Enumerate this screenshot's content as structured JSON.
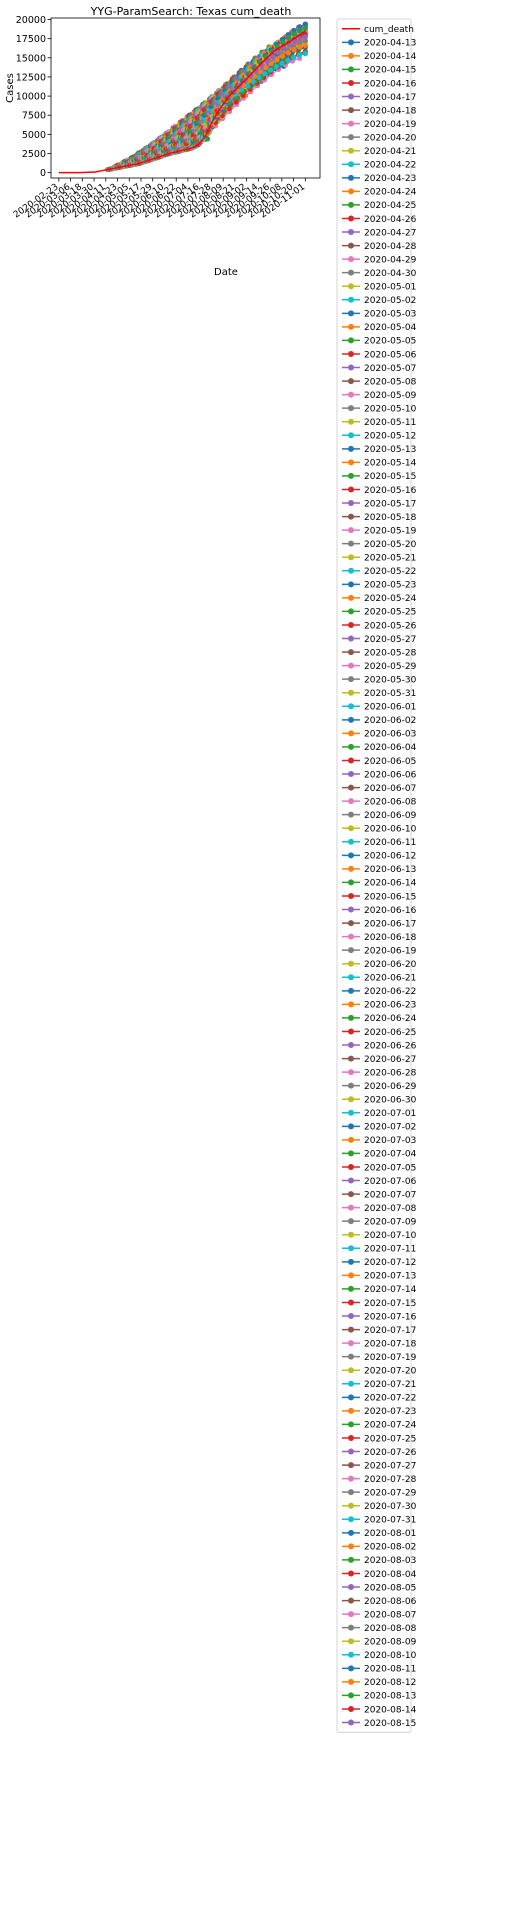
{
  "chart_data": {
    "type": "line",
    "title": "YYG-ParamSearch: Texas cum_death",
    "xlabel": "Date",
    "ylabel": "Cases",
    "ylim": [
      -700,
      20200
    ],
    "yticks": [
      0,
      2500,
      5000,
      7500,
      10000,
      12500,
      15000,
      17500,
      20000
    ],
    "xlim": [
      "2020-02-15",
      "2020-11-16"
    ],
    "xticks": [
      "2020-02-23",
      "2020-03-06",
      "2020-03-18",
      "2020-03-30",
      "2020-04-11",
      "2020-04-23",
      "2020-05-05",
      "2020-05-17",
      "2020-05-29",
      "2020-06-10",
      "2020-06-22",
      "2020-07-04",
      "2020-07-16",
      "2020-07-28",
      "2020-08-09",
      "2020-08-21",
      "2020-09-02",
      "2020-09-14",
      "2020-09-26",
      "2020-10-08",
      "2020-10-20",
      "2020-11-01"
    ],
    "grid": false,
    "legend_position": "outside-right",
    "truth": {
      "name": "cum_death",
      "color": "#ff0000",
      "x": [
        "2020-02-23",
        "2020-03-15",
        "2020-03-31",
        "2020-04-15",
        "2020-05-01",
        "2020-05-15",
        "2020-06-01",
        "2020-06-15",
        "2020-07-01",
        "2020-07-08",
        "2020-07-15",
        "2020-07-22",
        "2020-07-29",
        "2020-08-05",
        "2020-08-15",
        "2020-08-31",
        "2020-09-15",
        "2020-10-01",
        "2020-10-15",
        "2020-11-01"
      ],
      "y": [
        0,
        10,
        80,
        450,
        850,
        1200,
        1900,
        2500,
        3000,
        3200,
        3700,
        4800,
        6700,
        8200,
        10000,
        12000,
        14000,
        16000,
        17000,
        18500
      ]
    },
    "forecast_window_days": 100,
    "forecast_target_day": "2020-11-01",
    "color_cycle": [
      "#1f77b4",
      "#ff7f0e",
      "#2ca02c",
      "#d62728",
      "#9467bd",
      "#8c564b",
      "#e377c2",
      "#7f7f7f",
      "#bcbd22",
      "#17becf"
    ],
    "series": [
      {
        "name": "2020-04-13"
      },
      {
        "name": "2020-04-14"
      },
      {
        "name": "2020-04-15"
      },
      {
        "name": "2020-04-16"
      },
      {
        "name": "2020-04-17"
      },
      {
        "name": "2020-04-18"
      },
      {
        "name": "2020-04-19"
      },
      {
        "name": "2020-04-20"
      },
      {
        "name": "2020-04-21"
      },
      {
        "name": "2020-04-22"
      },
      {
        "name": "2020-04-23"
      },
      {
        "name": "2020-04-24"
      },
      {
        "name": "2020-04-25"
      },
      {
        "name": "2020-04-26"
      },
      {
        "name": "2020-04-27"
      },
      {
        "name": "2020-04-28"
      },
      {
        "name": "2020-04-29"
      },
      {
        "name": "2020-04-30"
      },
      {
        "name": "2020-05-01"
      },
      {
        "name": "2020-05-02"
      },
      {
        "name": "2020-05-03"
      },
      {
        "name": "2020-05-04"
      },
      {
        "name": "2020-05-05"
      },
      {
        "name": "2020-05-06"
      },
      {
        "name": "2020-05-07"
      },
      {
        "name": "2020-05-08"
      },
      {
        "name": "2020-05-09"
      },
      {
        "name": "2020-05-10"
      },
      {
        "name": "2020-05-11"
      },
      {
        "name": "2020-05-12"
      },
      {
        "name": "2020-05-13"
      },
      {
        "name": "2020-05-14"
      },
      {
        "name": "2020-05-15"
      },
      {
        "name": "2020-05-16"
      },
      {
        "name": "2020-05-17"
      },
      {
        "name": "2020-05-18"
      },
      {
        "name": "2020-05-19"
      },
      {
        "name": "2020-05-20"
      },
      {
        "name": "2020-05-21"
      },
      {
        "name": "2020-05-22"
      },
      {
        "name": "2020-05-23"
      },
      {
        "name": "2020-05-24"
      },
      {
        "name": "2020-05-25"
      },
      {
        "name": "2020-05-26"
      },
      {
        "name": "2020-05-27"
      },
      {
        "name": "2020-05-28"
      },
      {
        "name": "2020-05-29"
      },
      {
        "name": "2020-05-30"
      },
      {
        "name": "2020-05-31"
      },
      {
        "name": "2020-06-01"
      },
      {
        "name": "2020-06-02"
      },
      {
        "name": "2020-06-03"
      },
      {
        "name": "2020-06-04"
      },
      {
        "name": "2020-06-05"
      },
      {
        "name": "2020-06-06"
      },
      {
        "name": "2020-06-07"
      },
      {
        "name": "2020-06-08"
      },
      {
        "name": "2020-06-09"
      },
      {
        "name": "2020-06-10"
      },
      {
        "name": "2020-06-11"
      },
      {
        "name": "2020-06-12"
      },
      {
        "name": "2020-06-13"
      },
      {
        "name": "2020-06-14"
      },
      {
        "name": "2020-06-15"
      },
      {
        "name": "2020-06-16"
      },
      {
        "name": "2020-06-17"
      },
      {
        "name": "2020-06-18"
      },
      {
        "name": "2020-06-19"
      },
      {
        "name": "2020-06-20"
      },
      {
        "name": "2020-06-21"
      },
      {
        "name": "2020-06-22"
      },
      {
        "name": "2020-06-23"
      },
      {
        "name": "2020-06-24"
      },
      {
        "name": "2020-06-25"
      },
      {
        "name": "2020-06-26"
      },
      {
        "name": "2020-06-27"
      },
      {
        "name": "2020-06-28"
      },
      {
        "name": "2020-06-29"
      },
      {
        "name": "2020-06-30"
      },
      {
        "name": "2020-07-01"
      },
      {
        "name": "2020-07-02"
      },
      {
        "name": "2020-07-03"
      },
      {
        "name": "2020-07-04"
      },
      {
        "name": "2020-07-05"
      },
      {
        "name": "2020-07-06"
      },
      {
        "name": "2020-07-07"
      },
      {
        "name": "2020-07-08"
      },
      {
        "name": "2020-07-09"
      },
      {
        "name": "2020-07-10"
      },
      {
        "name": "2020-07-11"
      },
      {
        "name": "2020-07-12"
      },
      {
        "name": "2020-07-13"
      },
      {
        "name": "2020-07-14"
      },
      {
        "name": "2020-07-15"
      },
      {
        "name": "2020-07-16"
      },
      {
        "name": "2020-07-17"
      },
      {
        "name": "2020-07-18"
      },
      {
        "name": "2020-07-19"
      },
      {
        "name": "2020-07-20"
      },
      {
        "name": "2020-07-21"
      },
      {
        "name": "2020-07-22"
      },
      {
        "name": "2020-07-23"
      },
      {
        "name": "2020-07-24"
      },
      {
        "name": "2020-07-25"
      },
      {
        "name": "2020-07-26"
      },
      {
        "name": "2020-07-27"
      },
      {
        "name": "2020-07-28"
      },
      {
        "name": "2020-07-29"
      },
      {
        "name": "2020-07-30"
      },
      {
        "name": "2020-07-31"
      },
      {
        "name": "2020-08-01"
      },
      {
        "name": "2020-08-02"
      },
      {
        "name": "2020-08-03"
      },
      {
        "name": "2020-08-04"
      },
      {
        "name": "2020-08-05"
      },
      {
        "name": "2020-08-06"
      },
      {
        "name": "2020-08-07"
      },
      {
        "name": "2020-08-08"
      },
      {
        "name": "2020-08-09"
      },
      {
        "name": "2020-08-10"
      },
      {
        "name": "2020-08-11"
      },
      {
        "name": "2020-08-12"
      },
      {
        "name": "2020-08-13"
      },
      {
        "name": "2020-08-14"
      },
      {
        "name": "2020-08-15"
      }
    ]
  }
}
